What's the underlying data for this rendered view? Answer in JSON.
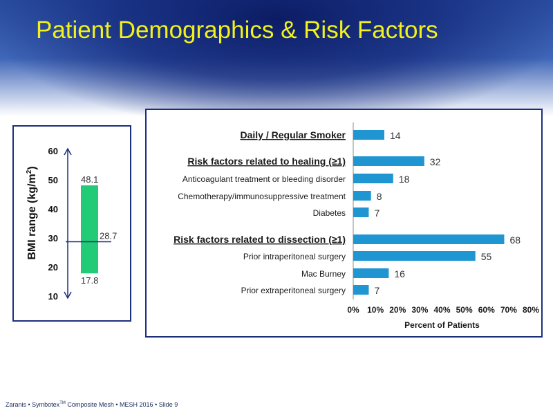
{
  "slide": {
    "title": "Patient Demographics & Risk Factors",
    "footer_pre": "Zaranis • Symbotex",
    "footer_tm": "TM",
    "footer_post": " Composite Mesh • MESH 2016 • Slide 9"
  },
  "colors": {
    "bar": "#1f96d2",
    "bmi_bar": "#22cc77",
    "title": "#f2f21a",
    "navy": "#1c2f7a"
  },
  "chart_data": [
    {
      "type": "range",
      "ylabel_main": "BMI range (kg/m",
      "ylabel_sup": "2",
      "ylabel_close": ")",
      "ylim": [
        10,
        60
      ],
      "yticks": [
        10,
        20,
        30,
        40,
        50,
        60
      ],
      "min": 17.8,
      "max": 48.1,
      "median": 28.7,
      "min_label": "17.8",
      "max_label": "48.1",
      "median_label": "28.7"
    },
    {
      "type": "bar",
      "orientation": "horizontal",
      "xlabel": "Percent of Patients",
      "xlim": [
        0,
        80
      ],
      "xticks": [
        "0%",
        "10%",
        "20%",
        "30%",
        "40%",
        "50%",
        "60%",
        "70%",
        "80%"
      ],
      "categories": [
        "Daily / Regular Smoker",
        "Risk factors related to healing (≥1)",
        "Anticoagulant treatment or bleeding disorder",
        "Chemotherapy/immunosuppressive treatment",
        "Diabetes",
        "Risk factors related to dissection (≥1)",
        "Prior intraperitoneal surgery",
        "Mac Burney",
        "Prior extraperitoneal surgery"
      ],
      "values": [
        14,
        32,
        18,
        8,
        7,
        68,
        55,
        16,
        7
      ],
      "headers": [
        true,
        true,
        false,
        false,
        false,
        true,
        false,
        false,
        false
      ]
    }
  ]
}
